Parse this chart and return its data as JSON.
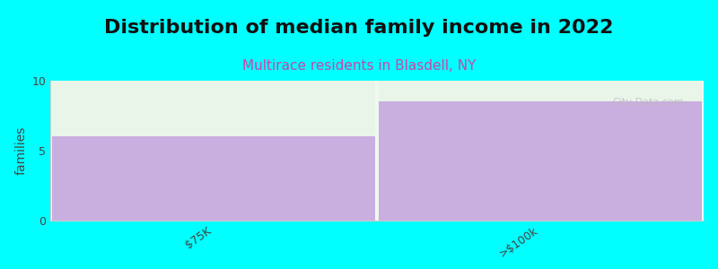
{
  "title": "Distribution of median family income in 2022",
  "subtitle": "Multirace residents in Blasdell, NY",
  "categories": [
    "$75K",
    ">$100k"
  ],
  "values": [
    6,
    8.5
  ],
  "bar_color": "#c9aee0",
  "background_color": "#00ffff",
  "plot_bg_color": "#f0f8f0",
  "title_fontsize": 16,
  "subtitle_fontsize": 11,
  "subtitle_color": "#cc44aa",
  "ylabel": "families",
  "ylim": [
    0,
    10
  ],
  "yticks": [
    0,
    5,
    10
  ],
  "watermark": "City-Data.com",
  "above_bar1_color": "#e8f5e8"
}
